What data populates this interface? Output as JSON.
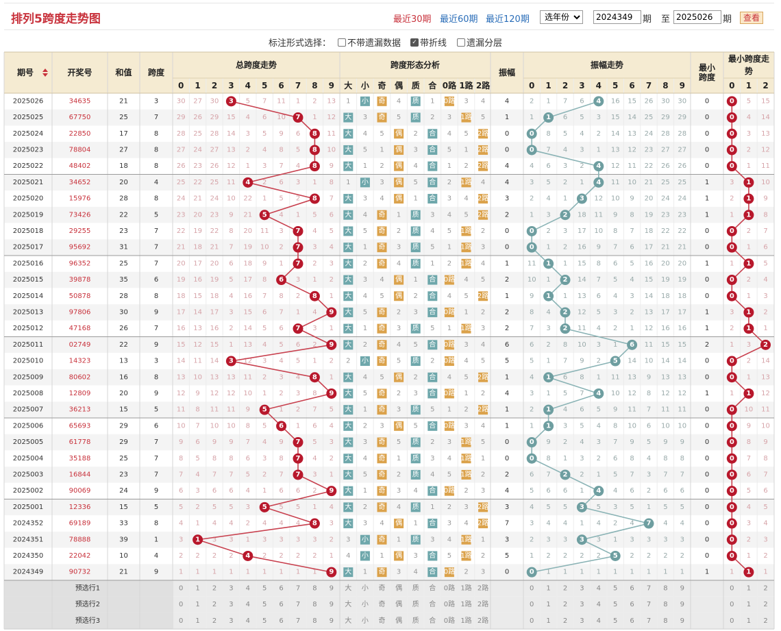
{
  "header": {
    "title": "排列5跨度走势图",
    "range_links": [
      "最近30期",
      "最近60期",
      "最近120期"
    ],
    "year_select": "选年份",
    "from_value": "2024349",
    "period_label": "期",
    "to_label": "至",
    "to_value": "2025026",
    "query_button": "查看"
  },
  "options": {
    "label": "标注形式选择：",
    "items": [
      {
        "label": "不带遗漏数据",
        "checked": false
      },
      {
        "label": "带折线",
        "checked": true
      },
      {
        "label": "遗漏分层",
        "checked": false
      }
    ]
  },
  "columns": {
    "period": "期号",
    "number": "开奖号",
    "sum": "和值",
    "span": "跨度",
    "span_trend": "总跨度走势",
    "shape": "跨度形态分析",
    "amplitude": "振幅",
    "amp_trend": "振幅走势",
    "min_span": "最小跨度",
    "min_trend": "最小跨度走势",
    "digits": [
      "0",
      "1",
      "2",
      "3",
      "4",
      "5",
      "6",
      "7",
      "8",
      "9"
    ],
    "shape_labels": [
      "大",
      "小",
      "奇",
      "偶",
      "质",
      "合",
      "0路",
      "1路",
      "2路"
    ],
    "min_digits": [
      "0",
      "1",
      "2"
    ]
  },
  "rows": [
    {
      "p": "2025026",
      "n": "34635",
      "s": 21,
      "k": 3,
      "a": 4,
      "m": 0
    },
    {
      "p": "2025025",
      "n": "67750",
      "s": 25,
      "k": 7,
      "a": 1,
      "m": 0
    },
    {
      "p": "2025024",
      "n": "22850",
      "s": 17,
      "k": 8,
      "a": 0,
      "m": 0
    },
    {
      "p": "2025023",
      "n": "78804",
      "s": 27,
      "k": 8,
      "a": 0,
      "m": 0
    },
    {
      "p": "2025022",
      "n": "48402",
      "s": 18,
      "k": 8,
      "a": 4,
      "m": 0
    },
    {
      "p": "2025021",
      "n": "34652",
      "s": 20,
      "k": 4,
      "a": 4,
      "m": 1
    },
    {
      "p": "2025020",
      "n": "15976",
      "s": 28,
      "k": 8,
      "a": 3,
      "m": 1
    },
    {
      "p": "2025019",
      "n": "73426",
      "s": 22,
      "k": 5,
      "a": 2,
      "m": 1
    },
    {
      "p": "2025018",
      "n": "29255",
      "s": 23,
      "k": 7,
      "a": 0,
      "m": 0
    },
    {
      "p": "2025017",
      "n": "95692",
      "s": 31,
      "k": 7,
      "a": 0,
      "m": 0
    },
    {
      "p": "2025016",
      "n": "96352",
      "s": 25,
      "k": 7,
      "a": 1,
      "m": 1
    },
    {
      "p": "2025015",
      "n": "39878",
      "s": 35,
      "k": 6,
      "a": 2,
      "m": 0
    },
    {
      "p": "2025014",
      "n": "50878",
      "s": 28,
      "k": 8,
      "a": 1,
      "m": 0
    },
    {
      "p": "2025013",
      "n": "97806",
      "s": 30,
      "k": 9,
      "a": 2,
      "m": 1
    },
    {
      "p": "2025012",
      "n": "47168",
      "s": 26,
      "k": 7,
      "a": 2,
      "m": 1
    },
    {
      "p": "2025011",
      "n": "02749",
      "s": 22,
      "k": 9,
      "a": 6,
      "m": 2
    },
    {
      "p": "2025010",
      "n": "14323",
      "s": 13,
      "k": 3,
      "a": 5,
      "m": 0
    },
    {
      "p": "2025009",
      "n": "80602",
      "s": 16,
      "k": 8,
      "a": 1,
      "m": 0
    },
    {
      "p": "2025008",
      "n": "12809",
      "s": 20,
      "k": 9,
      "a": 4,
      "m": 1
    },
    {
      "p": "2025007",
      "n": "36213",
      "s": 15,
      "k": 5,
      "a": 1,
      "m": 0
    },
    {
      "p": "2025006",
      "n": "65693",
      "s": 29,
      "k": 6,
      "a": 1,
      "m": 0
    },
    {
      "p": "2025005",
      "n": "61778",
      "s": 29,
      "k": 7,
      "a": 0,
      "m": 0
    },
    {
      "p": "2025004",
      "n": "35188",
      "s": 25,
      "k": 7,
      "a": 0,
      "m": 0
    },
    {
      "p": "2025003",
      "n": "16844",
      "s": 23,
      "k": 7,
      "a": 2,
      "m": 0
    },
    {
      "p": "2025002",
      "n": "90069",
      "s": 24,
      "k": 9,
      "a": 4,
      "m": 0
    },
    {
      "p": "2025001",
      "n": "12336",
      "s": 15,
      "k": 5,
      "a": 3,
      "m": 0
    },
    {
      "p": "2024352",
      "n": "69189",
      "s": 33,
      "k": 8,
      "a": 7,
      "m": 0
    },
    {
      "p": "2024351",
      "n": "78888",
      "s": 39,
      "k": 1,
      "a": 3,
      "m": 0
    },
    {
      "p": "2024350",
      "n": "22042",
      "s": 10,
      "k": 4,
      "a": 5,
      "m": 0
    },
    {
      "p": "2024349",
      "n": "90732",
      "s": 21,
      "k": 9,
      "a": 0,
      "m": 1
    }
  ],
  "preselect": [
    "预选行1",
    "预选行2",
    "预选行3"
  ],
  "colors": {
    "header_bg": "#f5ebd2",
    "row_alt": "#f4f4f4",
    "ball_red": "#b8182c",
    "line_red": "#c8404e",
    "ball_teal": "#6e9ea0",
    "line_teal": "#8ab3b5",
    "tag_teal": "#6ea7ab",
    "tag_orange": "#dba24b",
    "title_red": "#c8323c"
  }
}
